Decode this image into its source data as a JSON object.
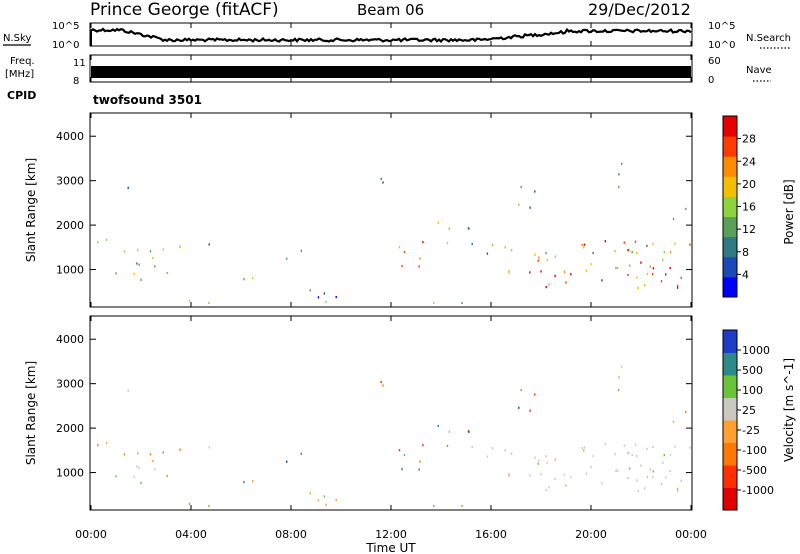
{
  "header": {
    "station": "Prince George (fitACF)",
    "beam": "Beam 06",
    "date": "29/Dec/2012"
  },
  "summary_panels": {
    "nsky_label": "N.Sky",
    "nsearch_label": "N.Search",
    "freq_label_1": "Freq.",
    "freq_label_2": "[MHz]",
    "nave_label": "Nave",
    "cpid_label": "CPID",
    "cpid_value": "twofsound 3501",
    "noise_tick_top": "10^5",
    "noise_tick_bottom": "10^0",
    "freq_ticks": [
      "11",
      "8"
    ],
    "nave_ticks": [
      "60",
      "0"
    ]
  },
  "chart_data": [
    {
      "type": "heatmap",
      "name": "power",
      "ylabel": "Slant Range [km]",
      "ylim": [
        180,
        4500
      ],
      "yticks": [
        1000,
        2000,
        3000,
        4000
      ],
      "colorbar": {
        "label": "Power [dB]",
        "range": [
          0,
          32
        ],
        "ticks": [
          "28",
          "24",
          "20",
          "16",
          "12",
          "8",
          "4"
        ],
        "colors": [
          "#0000ff",
          "#1d48b8",
          "#2f7a82",
          "#5aa05a",
          "#8fd240",
          "#f2c000",
          "#ff8c00",
          "#ff3c00",
          "#e60000"
        ]
      }
    },
    {
      "type": "heatmap",
      "name": "velocity",
      "ylabel": "Slant Range [km]",
      "xlabel": "Time UT",
      "xlim": [
        "00:00",
        "00:00"
      ],
      "xticks": [
        "00:00",
        "04:00",
        "08:00",
        "12:00",
        "16:00",
        "20:00",
        "00:00"
      ],
      "ylim": [
        180,
        4500
      ],
      "yticks": [
        1000,
        2000,
        3000,
        4000
      ],
      "colorbar": {
        "label": "Velocity [m s^-1]",
        "ticks": [
          "1000",
          "500",
          "100",
          "25",
          "-25",
          "-100",
          "-500",
          "-1000"
        ],
        "colors": [
          "#1e3cc8",
          "#2e8a8a",
          "#6ac43a",
          "#c8c8c0",
          "#ffa030",
          "#ff7800",
          "#ff3000",
          "#e00000"
        ]
      }
    }
  ]
}
